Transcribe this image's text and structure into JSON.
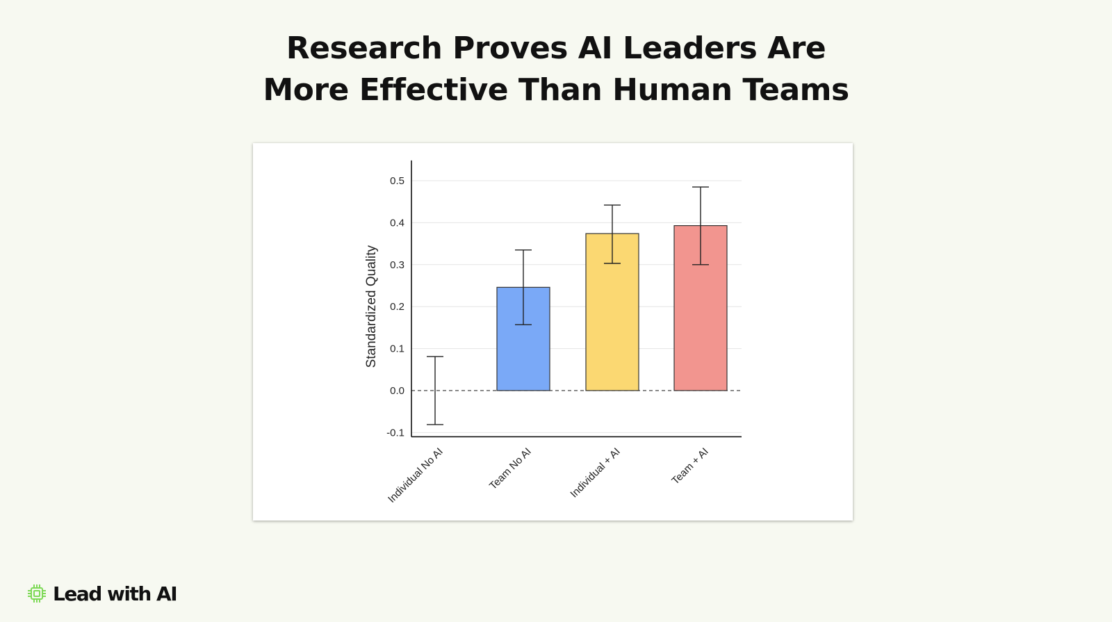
{
  "title_lines": [
    "Research Proves AI Leaders Are",
    "More Effective Than Human Teams"
  ],
  "brand": {
    "name": "Lead with AI",
    "icon": "chip-icon",
    "icon_color": "#7ed957"
  },
  "chart_data": {
    "type": "bar",
    "title": "",
    "xlabel": "",
    "ylabel": "Standardized Quality",
    "categories": [
      "Individual No AI",
      "Team No AI",
      "Individual + AI",
      "Team + AI"
    ],
    "values": [
      0.0,
      0.246,
      0.374,
      0.393
    ],
    "error_low": [
      -0.081,
      0.157,
      0.303,
      0.3
    ],
    "error_high": [
      0.081,
      0.335,
      0.442,
      0.485
    ],
    "colors": [
      "#ffffff",
      "#7aa9f7",
      "#fbd872",
      "#f2958f"
    ],
    "ylim": [
      -0.11,
      0.54
    ],
    "yticks": [
      "-0.1",
      "0.0",
      "0.1",
      "0.2",
      "0.3",
      "0.4",
      "0.5"
    ],
    "ytick_values": [
      -0.1,
      0.0,
      0.1,
      0.2,
      0.3,
      0.4,
      0.5
    ],
    "grid": true,
    "zero_line": "dashed"
  }
}
